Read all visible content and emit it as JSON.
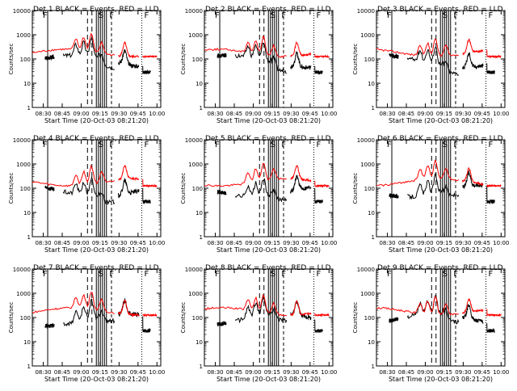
{
  "chart_data": [
    {
      "type": "line",
      "title": "Det 1",
      "legend_text": "BLACK = Events, RED = LLD",
      "xlabel": "Start Time (20-Oct-03 08:21:20)",
      "ylabel": "Counts/sec",
      "yscale": "log",
      "ylim": [
        1,
        10000
      ],
      "yticks": [
        "1",
        "10",
        "100",
        "1000",
        "10000"
      ],
      "xticks": [
        "08:30",
        "08:45",
        "09:00",
        "09:15",
        "09:30",
        "09:45",
        "10:00"
      ],
      "region_markers": [
        "F",
        "S",
        "F",
        "F"
      ],
      "series": [
        {
          "name": "BLACK = Events",
          "color": "#000000"
        },
        {
          "name": "RED = LLD",
          "color": "#ff0000"
        }
      ]
    },
    {
      "type": "line",
      "title": "Det 2",
      "legend_text": "BLACK = Events, RED = LLD",
      "xlabel": "Start Time (20-Oct-03 08:21:20)",
      "ylabel": "Counts/sec",
      "yscale": "log",
      "ylim": [
        1,
        10000
      ],
      "yticks": [
        "1",
        "10",
        "100",
        "1000",
        "10000"
      ],
      "xticks": [
        "08:30",
        "08:45",
        "09:00",
        "09:15",
        "09:30",
        "09:45",
        "10:00"
      ],
      "region_markers": [
        "F",
        "S",
        "F",
        "F"
      ],
      "series": [
        {
          "name": "BLACK = Events",
          "color": "#000000"
        },
        {
          "name": "RED = LLD",
          "color": "#ff0000"
        }
      ]
    },
    {
      "type": "line",
      "title": "Det 3",
      "legend_text": "BLACK = Events, RED = LLD",
      "xlabel": "Start Time (20-Oct-03 08:21:20)",
      "ylabel": "Counts/sec",
      "yscale": "log",
      "ylim": [
        1,
        10000
      ],
      "yticks": [
        "1",
        "10",
        "100",
        "1000",
        "10000"
      ],
      "xticks": [
        "08:30",
        "08:45",
        "09:00",
        "09:15",
        "09:30",
        "09:45",
        "10:00"
      ],
      "region_markers": [
        "F",
        "S",
        "F",
        "F"
      ],
      "series": [
        {
          "name": "BLACK = Events",
          "color": "#000000"
        },
        {
          "name": "RED = LLD",
          "color": "#ff0000"
        }
      ]
    },
    {
      "type": "line",
      "title": "Det 4",
      "legend_text": "BLACK = Events, RED = LLD",
      "xlabel": "Start Time (20-Oct-03 08:21:20)",
      "ylabel": "Counts/sec",
      "yscale": "log",
      "ylim": [
        1,
        10000
      ],
      "yticks": [
        "1",
        "10",
        "100",
        "1000",
        "10000"
      ],
      "xticks": [
        "08:30",
        "08:45",
        "09:00",
        "09:15",
        "09:30",
        "09:45",
        "10:00"
      ],
      "region_markers": [
        "F",
        "S",
        "F",
        "F"
      ],
      "series": [
        {
          "name": "BLACK = Events",
          "color": "#000000"
        },
        {
          "name": "RED = LLD",
          "color": "#ff0000"
        }
      ]
    },
    {
      "type": "line",
      "title": "Det 5",
      "legend_text": "BLACK = Events, RED = LLD",
      "xlabel": "Start Time (20-Oct-03 08:21:20)",
      "ylabel": "Counts/sec",
      "yscale": "log",
      "ylim": [
        1,
        10000
      ],
      "yticks": [
        "1",
        "10",
        "100",
        "1000",
        "10000"
      ],
      "xticks": [
        "08:30",
        "08:45",
        "09:00",
        "09:15",
        "09:30",
        "09:45",
        "10:00"
      ],
      "region_markers": [
        "F",
        "S",
        "F",
        "F"
      ],
      "series": [
        {
          "name": "BLACK = Events",
          "color": "#000000"
        },
        {
          "name": "RED = LLD",
          "color": "#ff0000"
        }
      ]
    },
    {
      "type": "line",
      "title": "Det 6",
      "legend_text": "BLACK = Events, RED = LLD",
      "xlabel": "Start Time (20-Oct-03 08:21:20)",
      "ylabel": "Counts/sec",
      "yscale": "log",
      "ylim": [
        1,
        10000
      ],
      "yticks": [
        "1",
        "10",
        "100",
        "1000",
        "10000"
      ],
      "xticks": [
        "08:30",
        "08:45",
        "09:00",
        "09:15",
        "09:30",
        "09:45",
        "10:00"
      ],
      "region_markers": [
        "F",
        "S",
        "F",
        "F"
      ],
      "series": [
        {
          "name": "BLACK = Events",
          "color": "#000000"
        },
        {
          "name": "RED = LLD",
          "color": "#ff0000"
        }
      ]
    },
    {
      "type": "line",
      "title": "Det 7",
      "legend_text": "BLACK = Events, RED = LLD",
      "xlabel": "Start Time (20-Oct-03 08:21:20)",
      "ylabel": "Counts/sec",
      "yscale": "log",
      "ylim": [
        1,
        10000
      ],
      "yticks": [
        "1",
        "10",
        "100",
        "1000",
        "10000"
      ],
      "xticks": [
        "08:30",
        "08:45",
        "09:00",
        "09:15",
        "09:30",
        "09:45",
        "10:00"
      ],
      "region_markers": [
        "F",
        "S",
        "F",
        "F"
      ],
      "series": [
        {
          "name": "BLACK = Events",
          "color": "#000000"
        },
        {
          "name": "RED = LLD",
          "color": "#ff0000"
        }
      ]
    },
    {
      "type": "line",
      "title": "Det 8",
      "legend_text": "BLACK = Events, RED = LLD",
      "xlabel": "Start Time (20-Oct-03 08:21:20)",
      "ylabel": "Counts/sec",
      "yscale": "log",
      "ylim": [
        1,
        10000
      ],
      "yticks": [
        "1",
        "10",
        "100",
        "1000",
        "10000"
      ],
      "xticks": [
        "08:30",
        "08:45",
        "09:00",
        "09:15",
        "09:30",
        "09:45",
        "10:00"
      ],
      "region_markers": [
        "F",
        "S",
        "F",
        "F"
      ],
      "series": [
        {
          "name": "BLACK = Events",
          "color": "#000000"
        },
        {
          "name": "RED = LLD",
          "color": "#ff0000"
        }
      ]
    },
    {
      "type": "line",
      "title": "Det 9",
      "legend_text": "BLACK = Events, RED = LLD",
      "xlabel": "Start Time (20-Oct-03 08:21:20)",
      "ylabel": "Counts/sec",
      "yscale": "log",
      "ylim": [
        1,
        10000
      ],
      "yticks": [
        "1",
        "10",
        "100",
        "1000",
        "10000"
      ],
      "xticks": [
        "08:30",
        "08:45",
        "09:00",
        "09:15",
        "09:30",
        "09:45",
        "10:00"
      ],
      "region_markers": [
        "F",
        "S",
        "F",
        "F"
      ],
      "series": [
        {
          "name": "BLACK = Events",
          "color": "#000000"
        },
        {
          "name": "RED = LLD",
          "color": "#ff0000"
        }
      ]
    }
  ]
}
